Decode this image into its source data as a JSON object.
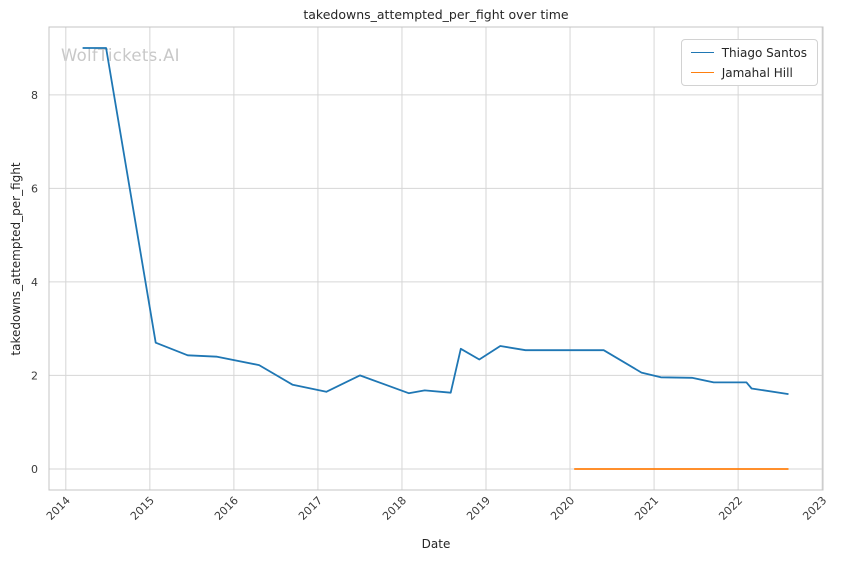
{
  "watermark": {
    "text": "WolfTickets.AI",
    "color": "#c8c8c8"
  },
  "colors": {
    "background": "#ffffff",
    "grid": "#d6d6d6",
    "spine": "#c4c4c4",
    "title_text": "#262626",
    "tick_text": "#3b3b3b",
    "series_blue": "#1f77b4",
    "series_orange": "#ff7f0e"
  },
  "chart_data": {
    "type": "line",
    "title": "takedowns_attempted_per_fight over time",
    "xlabel": "Date",
    "ylabel": "takedowns_attempted_per_fight",
    "xlim": [
      2013.8,
      2023.01
    ],
    "ylim": [
      -0.45,
      9.45
    ],
    "grid": true,
    "legend_position": "upper right",
    "xticks": {
      "values": [
        2014,
        2015,
        2016,
        2017,
        2018,
        2019,
        2020,
        2021,
        2022,
        2023
      ],
      "labels": [
        "2014",
        "2015",
        "2016",
        "2017",
        "2018",
        "2019",
        "2020",
        "2021",
        "2022",
        "2023"
      ]
    },
    "yticks": {
      "values": [
        0,
        2,
        4,
        6,
        8
      ],
      "labels": [
        "0",
        "2",
        "4",
        "6",
        "8"
      ]
    },
    "series": [
      {
        "name": "Thiago Santos",
        "color": "#1f77b4",
        "x": [
          2014.2,
          2014.48,
          2015.07,
          2015.45,
          2015.8,
          2016.3,
          2016.7,
          2017.1,
          2017.5,
          2018.08,
          2018.27,
          2018.58,
          2018.7,
          2018.92,
          2019.17,
          2019.47,
          2020.4,
          2020.85,
          2021.08,
          2021.45,
          2021.71,
          2022.1,
          2022.16,
          2022.6
        ],
        "y": [
          9.0,
          9.0,
          2.7,
          2.43,
          2.4,
          2.22,
          1.8,
          1.65,
          2.0,
          1.62,
          1.68,
          1.63,
          2.57,
          2.34,
          2.63,
          2.54,
          2.54,
          2.06,
          1.96,
          1.95,
          1.85,
          1.85,
          1.72,
          1.6
        ]
      },
      {
        "name": "Jamahal Hill",
        "color": "#ff7f0e",
        "x": [
          2020.05,
          2022.6
        ],
        "y": [
          0.0,
          0.0
        ]
      }
    ]
  }
}
